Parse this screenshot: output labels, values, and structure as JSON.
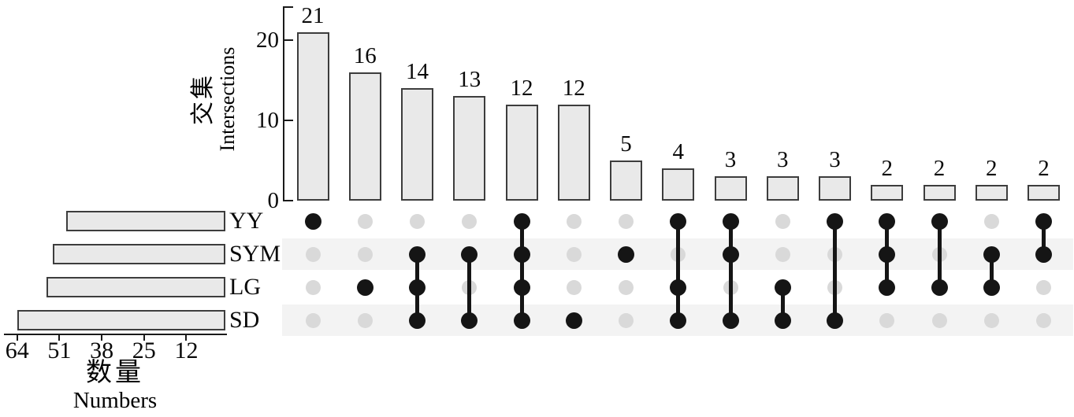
{
  "chart_data": {
    "type": "upset",
    "title": "",
    "sets": [
      {
        "name": "YY",
        "size": 49
      },
      {
        "name": "SYM",
        "size": 53
      },
      {
        "name": "LG",
        "size": 55
      },
      {
        "name": "SD",
        "size": 64
      }
    ],
    "intersections": [
      {
        "value": 21,
        "members": [
          "YY"
        ]
      },
      {
        "value": 16,
        "members": [
          "LG"
        ]
      },
      {
        "value": 14,
        "members": [
          "SYM",
          "LG",
          "SD"
        ]
      },
      {
        "value": 13,
        "members": [
          "SYM",
          "SD"
        ]
      },
      {
        "value": 12,
        "members": [
          "YY",
          "SYM",
          "LG",
          "SD"
        ]
      },
      {
        "value": 12,
        "members": [
          "SD"
        ]
      },
      {
        "value": 5,
        "members": [
          "SYM"
        ]
      },
      {
        "value": 4,
        "members": [
          "YY",
          "LG",
          "SD"
        ]
      },
      {
        "value": 3,
        "members": [
          "YY",
          "SYM",
          "SD"
        ]
      },
      {
        "value": 3,
        "members": [
          "LG",
          "SD"
        ]
      },
      {
        "value": 3,
        "members": [
          "YY",
          "SD"
        ]
      },
      {
        "value": 2,
        "members": [
          "YY",
          "SYM",
          "LG"
        ]
      },
      {
        "value": 2,
        "members": [
          "YY",
          "LG"
        ]
      },
      {
        "value": 2,
        "members": [
          "SYM",
          "LG"
        ]
      },
      {
        "value": 2,
        "members": [
          "YY",
          "SYM"
        ]
      }
    ],
    "intersection_axis": {
      "label_zh": "交集",
      "label_en": "Intersections",
      "ticks": [
        0,
        10,
        20
      ],
      "range": [
        0,
        24
      ],
      "grid": false
    },
    "set_axis": {
      "label_zh": "数量",
      "label_en": "Numbers",
      "ticks": [
        64,
        51,
        38,
        25,
        12
      ],
      "range": [
        0,
        68
      ],
      "direction": "right-to-left"
    },
    "legend": "none",
    "colors": {
      "bar_fill": "#e9e9e9",
      "bar_border": "#3d3d3d",
      "dot_active": "#151515",
      "dot_inactive": "#d9d9d9",
      "row_stripe": "#f3f3f3",
      "axis": "#1a1a1a"
    }
  }
}
